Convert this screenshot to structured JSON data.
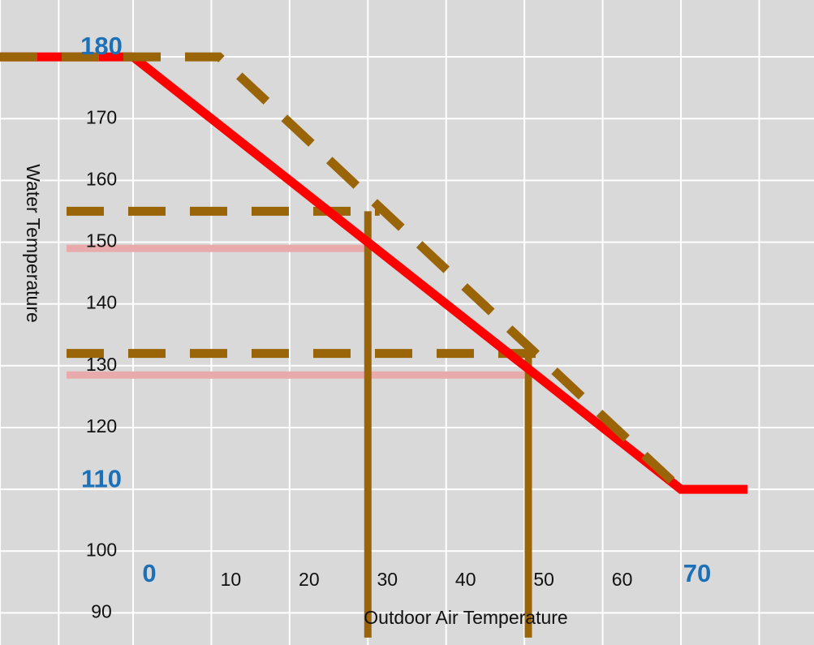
{
  "chart_data": {
    "type": "line",
    "xlabel": "Outdoor Air Temperature",
    "ylabel": "Water Temperature",
    "xlim": [
      -17,
      87
    ],
    "ylim": [
      84.8,
      189.2
    ],
    "grid": true,
    "x_ticks": [
      {
        "value": 0,
        "label": "0",
        "emphasis": true
      },
      {
        "value": 10,
        "label": "10",
        "emphasis": false
      },
      {
        "value": 20,
        "label": "20",
        "emphasis": false
      },
      {
        "value": 30,
        "label": "30",
        "emphasis": false
      },
      {
        "value": 40,
        "label": "40",
        "emphasis": false
      },
      {
        "value": 50,
        "label": "50",
        "emphasis": false
      },
      {
        "value": 60,
        "label": "60",
        "emphasis": false
      },
      {
        "value": 70,
        "label": "70",
        "emphasis": true
      }
    ],
    "y_ticks": [
      {
        "value": 180,
        "label": "180",
        "emphasis": true
      },
      {
        "value": 170,
        "label": "170",
        "emphasis": false
      },
      {
        "value": 160,
        "label": "160",
        "emphasis": false
      },
      {
        "value": 150,
        "label": "150",
        "emphasis": false
      },
      {
        "value": 140,
        "label": "140",
        "emphasis": false
      },
      {
        "value": 130,
        "label": "130",
        "emphasis": false
      },
      {
        "value": 120,
        "label": "120",
        "emphasis": false
      },
      {
        "value": 110,
        "label": "110",
        "emphasis": true
      },
      {
        "value": 100,
        "label": "100",
        "emphasis": false
      },
      {
        "value": 90,
        "label": "90",
        "emphasis": false
      }
    ],
    "series": [
      {
        "style": "solid-red",
        "color": "#ff0000",
        "points": [
          [
            -17,
            180
          ],
          [
            0,
            180
          ],
          [
            70,
            110
          ],
          [
            78.5,
            110
          ]
        ]
      },
      {
        "style": "dashed-brown",
        "color": "#9a6408",
        "points": [
          [
            -17,
            180
          ],
          [
            11,
            180
          ],
          [
            70,
            110
          ]
        ]
      }
    ],
    "reference_lines": [
      {
        "style": "dashed-brown",
        "color": "#9a6408",
        "y": 155,
        "x_from": -8.5,
        "x_to": 31.5
      },
      {
        "style": "dashed-brown",
        "color": "#9a6408",
        "y": 132,
        "x_from": -8.5,
        "x_to": 52
      },
      {
        "style": "light-red",
        "color": "#e8aaaa",
        "y": 149,
        "x_from": -8.5,
        "x_to": 30
      },
      {
        "style": "light-red",
        "color": "#e8aaaa",
        "y": 128.5,
        "x_from": -8.5,
        "x_to": 50
      }
    ],
    "vertical_lines": [
      {
        "color": "#9a6408",
        "x": 30,
        "y_from": 86,
        "y_to": 155
      },
      {
        "color": "#9a6408",
        "x": 50.5,
        "y_from": 86,
        "y_to": 132
      }
    ]
  }
}
